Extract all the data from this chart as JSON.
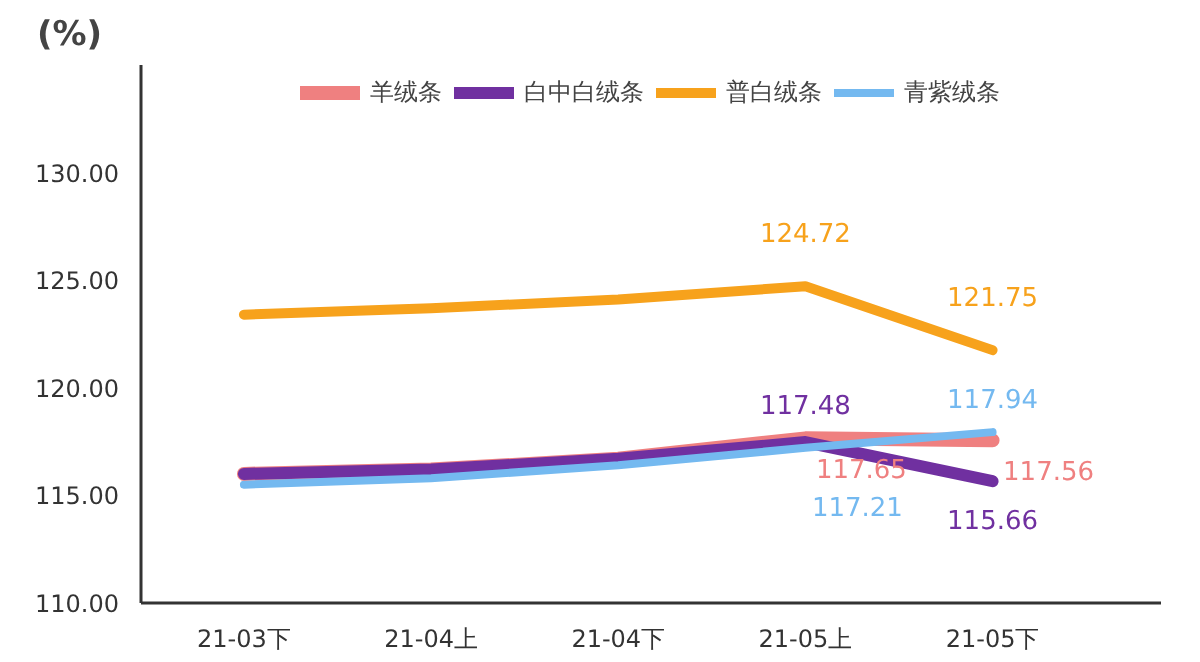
{
  "chart_data": {
    "type": "line",
    "ylabel": "(%)",
    "categories": [
      "21-03下",
      "21-04上",
      "21-04下",
      "21-05上",
      "21-05下"
    ],
    "ylim": [
      110,
      135
    ],
    "yticks": [
      {
        "value": 110,
        "label": "110.00"
      },
      {
        "value": 115,
        "label": "115.00"
      },
      {
        "value": 120,
        "label": "120.00"
      },
      {
        "value": 125,
        "label": "125.00"
      },
      {
        "value": 130,
        "label": "130.00"
      }
    ],
    "grid": false,
    "legend": "top",
    "line_style": "solid",
    "marker": "none",
    "series": [
      {
        "name": "羊绒条",
        "color": "#ef8080",
        "values": [
          116.0,
          116.2,
          116.7,
          117.65,
          117.56
        ],
        "value_labels": [
          null,
          null,
          null,
          "117.65",
          "117.56"
        ]
      },
      {
        "name": "白中白绒条",
        "color": "#7030a0",
        "values": [
          116.0,
          116.2,
          116.7,
          117.48,
          115.66
        ],
        "value_labels": [
          null,
          null,
          null,
          "117.48",
          "115.66"
        ]
      },
      {
        "name": "普白绒条",
        "color": "#f7a21c",
        "values": [
          123.4,
          123.7,
          124.1,
          124.72,
          121.75
        ],
        "value_labels": [
          null,
          null,
          null,
          "124.72",
          "121.75"
        ]
      },
      {
        "name": "青紫绒条",
        "color": "#74b9f0",
        "values": [
          115.5,
          115.8,
          116.4,
          117.21,
          117.94
        ],
        "value_labels": [
          null,
          null,
          null,
          "117.21",
          "117.94"
        ]
      }
    ]
  }
}
